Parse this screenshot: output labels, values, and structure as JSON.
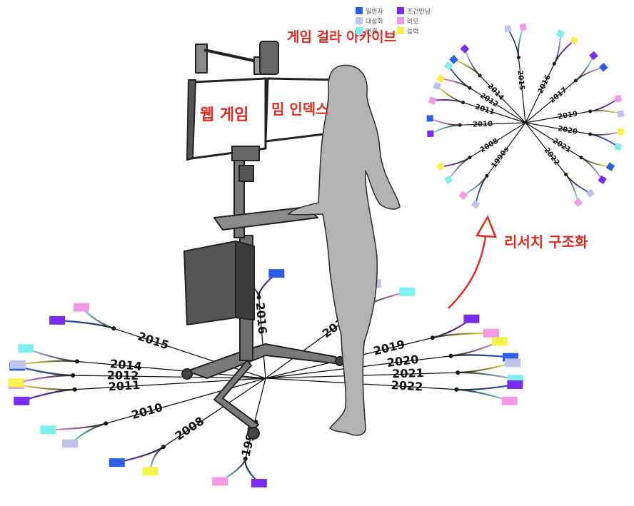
{
  "labels": {
    "game_archive": "게임 걸라 아카이브",
    "web_game": "웹 게임",
    "meme_index": "밈 인덱스",
    "research_structuring": "리서치 구조화"
  },
  "legend": [
    {
      "label": "일반자",
      "color": "#2d5ee8",
      "icon": "swatch"
    },
    {
      "label": "대상화",
      "color": "#c0c3ec",
      "icon": "swatch"
    },
    {
      "label": "연결",
      "color": "#7ff0ee",
      "icon": "swatch"
    },
    {
      "label": "조건만남",
      "color": "#7a2cf0",
      "icon": "swatch"
    },
    {
      "label": "리모",
      "color": "#f29ae6",
      "icon": "swatch"
    },
    {
      "label": "능력",
      "color": "#f7f24a",
      "icon": "swatch"
    }
  ],
  "years": [
    "1990s",
    "2008",
    "2010",
    "2011",
    "2012",
    "2014",
    "2015",
    "2016",
    "2017",
    "2019",
    "2020",
    "2021",
    "2022"
  ],
  "floor_years": [
    "1990s",
    "2008",
    "2010",
    "2011",
    "2012",
    "2014",
    "2015",
    "2016",
    "2017",
    "2019",
    "2020",
    "2021",
    "2022"
  ],
  "colors": {
    "accent_red": "#e02a22",
    "silhouette": "#b3b3b3",
    "blue": "#2d5ee8",
    "lavender": "#c0c3ec",
    "cyan": "#7ff0ee",
    "violet": "#7a2cf0",
    "pink": "#f29ae6",
    "yellow": "#f7f24a"
  }
}
